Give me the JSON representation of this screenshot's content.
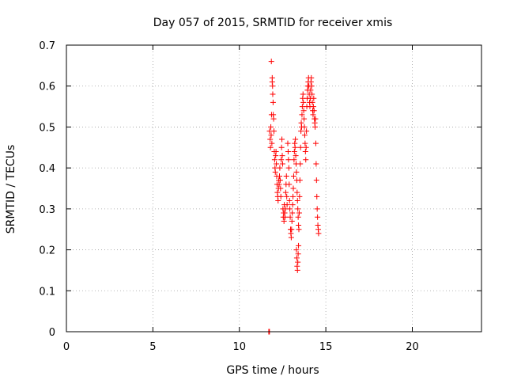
{
  "chart_data": {
    "type": "scatter",
    "title": "Day 057 of 2015, SRMTID for receiver xmis",
    "xlabel": "GPS time / hours",
    "ylabel": "SRMTID / TECUs",
    "xlim": [
      0,
      24
    ],
    "ylim": [
      0,
      0.7
    ],
    "xticks": [
      0,
      5,
      10,
      15,
      20
    ],
    "yticks": [
      0,
      0.1,
      0.2,
      0.3,
      0.4,
      0.5,
      0.6,
      0.7
    ],
    "grid": true,
    "marker": "plus",
    "colors": {
      "series": "#ff0000",
      "axis": "#000000",
      "grid": "#a0a0a0"
    },
    "series": [
      {
        "name": "SRMTID",
        "points": [
          [
            11.7,
            0.0
          ],
          [
            11.72,
            0.0
          ],
          [
            11.74,
            0.0
          ],
          [
            11.75,
            0.49
          ],
          [
            11.78,
            0.47
          ],
          [
            11.8,
            0.45
          ],
          [
            11.82,
            0.5
          ],
          [
            11.84,
            0.48
          ],
          [
            11.86,
            0.53
          ],
          [
            11.88,
            0.46
          ],
          [
            11.9,
            0.62
          ],
          [
            11.9,
            0.61
          ],
          [
            11.92,
            0.6
          ],
          [
            11.93,
            0.58
          ],
          [
            11.95,
            0.56
          ],
          [
            11.96,
            0.53
          ],
          [
            11.98,
            0.52
          ],
          [
            12.0,
            0.49
          ],
          [
            11.85,
            0.66
          ],
          [
            12.02,
            0.44
          ],
          [
            12.04,
            0.42
          ],
          [
            12.06,
            0.4
          ],
          [
            12.08,
            0.39
          ],
          [
            12.1,
            0.43
          ],
          [
            12.12,
            0.44
          ],
          [
            12.14,
            0.41
          ],
          [
            12.16,
            0.38
          ],
          [
            12.18,
            0.36
          ],
          [
            12.2,
            0.34
          ],
          [
            12.22,
            0.33
          ],
          [
            12.24,
            0.32
          ],
          [
            12.26,
            0.35
          ],
          [
            12.28,
            0.37
          ],
          [
            12.3,
            0.36
          ],
          [
            12.32,
            0.38
          ],
          [
            12.34,
            0.4
          ],
          [
            12.36,
            0.37
          ],
          [
            12.38,
            0.35
          ],
          [
            12.4,
            0.33
          ],
          [
            12.42,
            0.42
          ],
          [
            12.44,
            0.45
          ],
          [
            12.46,
            0.47
          ],
          [
            12.48,
            0.43
          ],
          [
            12.5,
            0.41
          ],
          [
            12.52,
            0.3
          ],
          [
            12.54,
            0.28
          ],
          [
            12.56,
            0.29
          ],
          [
            12.58,
            0.27
          ],
          [
            12.6,
            0.31
          ],
          [
            12.62,
            0.29
          ],
          [
            12.64,
            0.28
          ],
          [
            12.66,
            0.3
          ],
          [
            12.68,
            0.34
          ],
          [
            12.7,
            0.36
          ],
          [
            12.72,
            0.38
          ],
          [
            12.74,
            0.33
          ],
          [
            12.76,
            0.31
          ],
          [
            12.8,
            0.46
          ],
          [
            12.82,
            0.44
          ],
          [
            12.84,
            0.42
          ],
          [
            12.86,
            0.4
          ],
          [
            12.88,
            0.36
          ],
          [
            12.9,
            0.32
          ],
          [
            12.92,
            0.3
          ],
          [
            12.94,
            0.28
          ],
          [
            12.96,
            0.25
          ],
          [
            12.98,
            0.24
          ],
          [
            13.0,
            0.23
          ],
          [
            13.02,
            0.25
          ],
          [
            13.04,
            0.27
          ],
          [
            13.06,
            0.29
          ],
          [
            13.08,
            0.31
          ],
          [
            13.1,
            0.33
          ],
          [
            13.12,
            0.35
          ],
          [
            13.14,
            0.38
          ],
          [
            13.16,
            0.42
          ],
          [
            13.18,
            0.44
          ],
          [
            13.2,
            0.46
          ],
          [
            13.22,
            0.45
          ],
          [
            13.24,
            0.47
          ],
          [
            13.26,
            0.43
          ],
          [
            13.28,
            0.41
          ],
          [
            13.3,
            0.39
          ],
          [
            13.32,
            0.37
          ],
          [
            13.34,
            0.34
          ],
          [
            13.36,
            0.32
          ],
          [
            13.38,
            0.3
          ],
          [
            13.4,
            0.28
          ],
          [
            13.42,
            0.26
          ],
          [
            13.3,
            0.2
          ],
          [
            13.32,
            0.18
          ],
          [
            13.34,
            0.16
          ],
          [
            13.36,
            0.15
          ],
          [
            13.38,
            0.17
          ],
          [
            13.4,
            0.19
          ],
          [
            13.42,
            0.21
          ],
          [
            13.44,
            0.25
          ],
          [
            13.46,
            0.29
          ],
          [
            13.48,
            0.33
          ],
          [
            13.5,
            0.37
          ],
          [
            13.52,
            0.41
          ],
          [
            13.54,
            0.45
          ],
          [
            13.56,
            0.49
          ],
          [
            13.58,
            0.51
          ],
          [
            13.6,
            0.5
          ],
          [
            13.62,
            0.53
          ],
          [
            13.64,
            0.55
          ],
          [
            13.66,
            0.57
          ],
          [
            13.68,
            0.58
          ],
          [
            13.7,
            0.56
          ],
          [
            13.72,
            0.54
          ],
          [
            13.74,
            0.52
          ],
          [
            13.76,
            0.5
          ],
          [
            13.78,
            0.48
          ],
          [
            13.8,
            0.46
          ],
          [
            13.82,
            0.44
          ],
          [
            13.84,
            0.42
          ],
          [
            13.86,
            0.45
          ],
          [
            13.88,
            0.49
          ],
          [
            13.9,
            0.55
          ],
          [
            13.92,
            0.57
          ],
          [
            13.94,
            0.59
          ],
          [
            13.96,
            0.6
          ],
          [
            13.98,
            0.61
          ],
          [
            14.0,
            0.62
          ],
          [
            14.02,
            0.6
          ],
          [
            14.04,
            0.58
          ],
          [
            14.06,
            0.56
          ],
          [
            14.08,
            0.55
          ],
          [
            14.1,
            0.57
          ],
          [
            14.12,
            0.59
          ],
          [
            14.14,
            0.61
          ],
          [
            14.16,
            0.62
          ],
          [
            14.18,
            0.6
          ],
          [
            14.2,
            0.58
          ],
          [
            14.22,
            0.56
          ],
          [
            14.24,
            0.54
          ],
          [
            14.26,
            0.53
          ],
          [
            14.28,
            0.55
          ],
          [
            14.3,
            0.57
          ],
          [
            14.32,
            0.54
          ],
          [
            14.34,
            0.52
          ],
          [
            14.36,
            0.51
          ],
          [
            14.38,
            0.5
          ],
          [
            14.4,
            0.52
          ],
          [
            14.42,
            0.46
          ],
          [
            14.44,
            0.41
          ],
          [
            14.46,
            0.37
          ],
          [
            14.48,
            0.33
          ],
          [
            14.5,
            0.3
          ],
          [
            14.52,
            0.28
          ],
          [
            14.54,
            0.26
          ],
          [
            14.56,
            0.25
          ],
          [
            14.58,
            0.24
          ]
        ]
      }
    ]
  }
}
